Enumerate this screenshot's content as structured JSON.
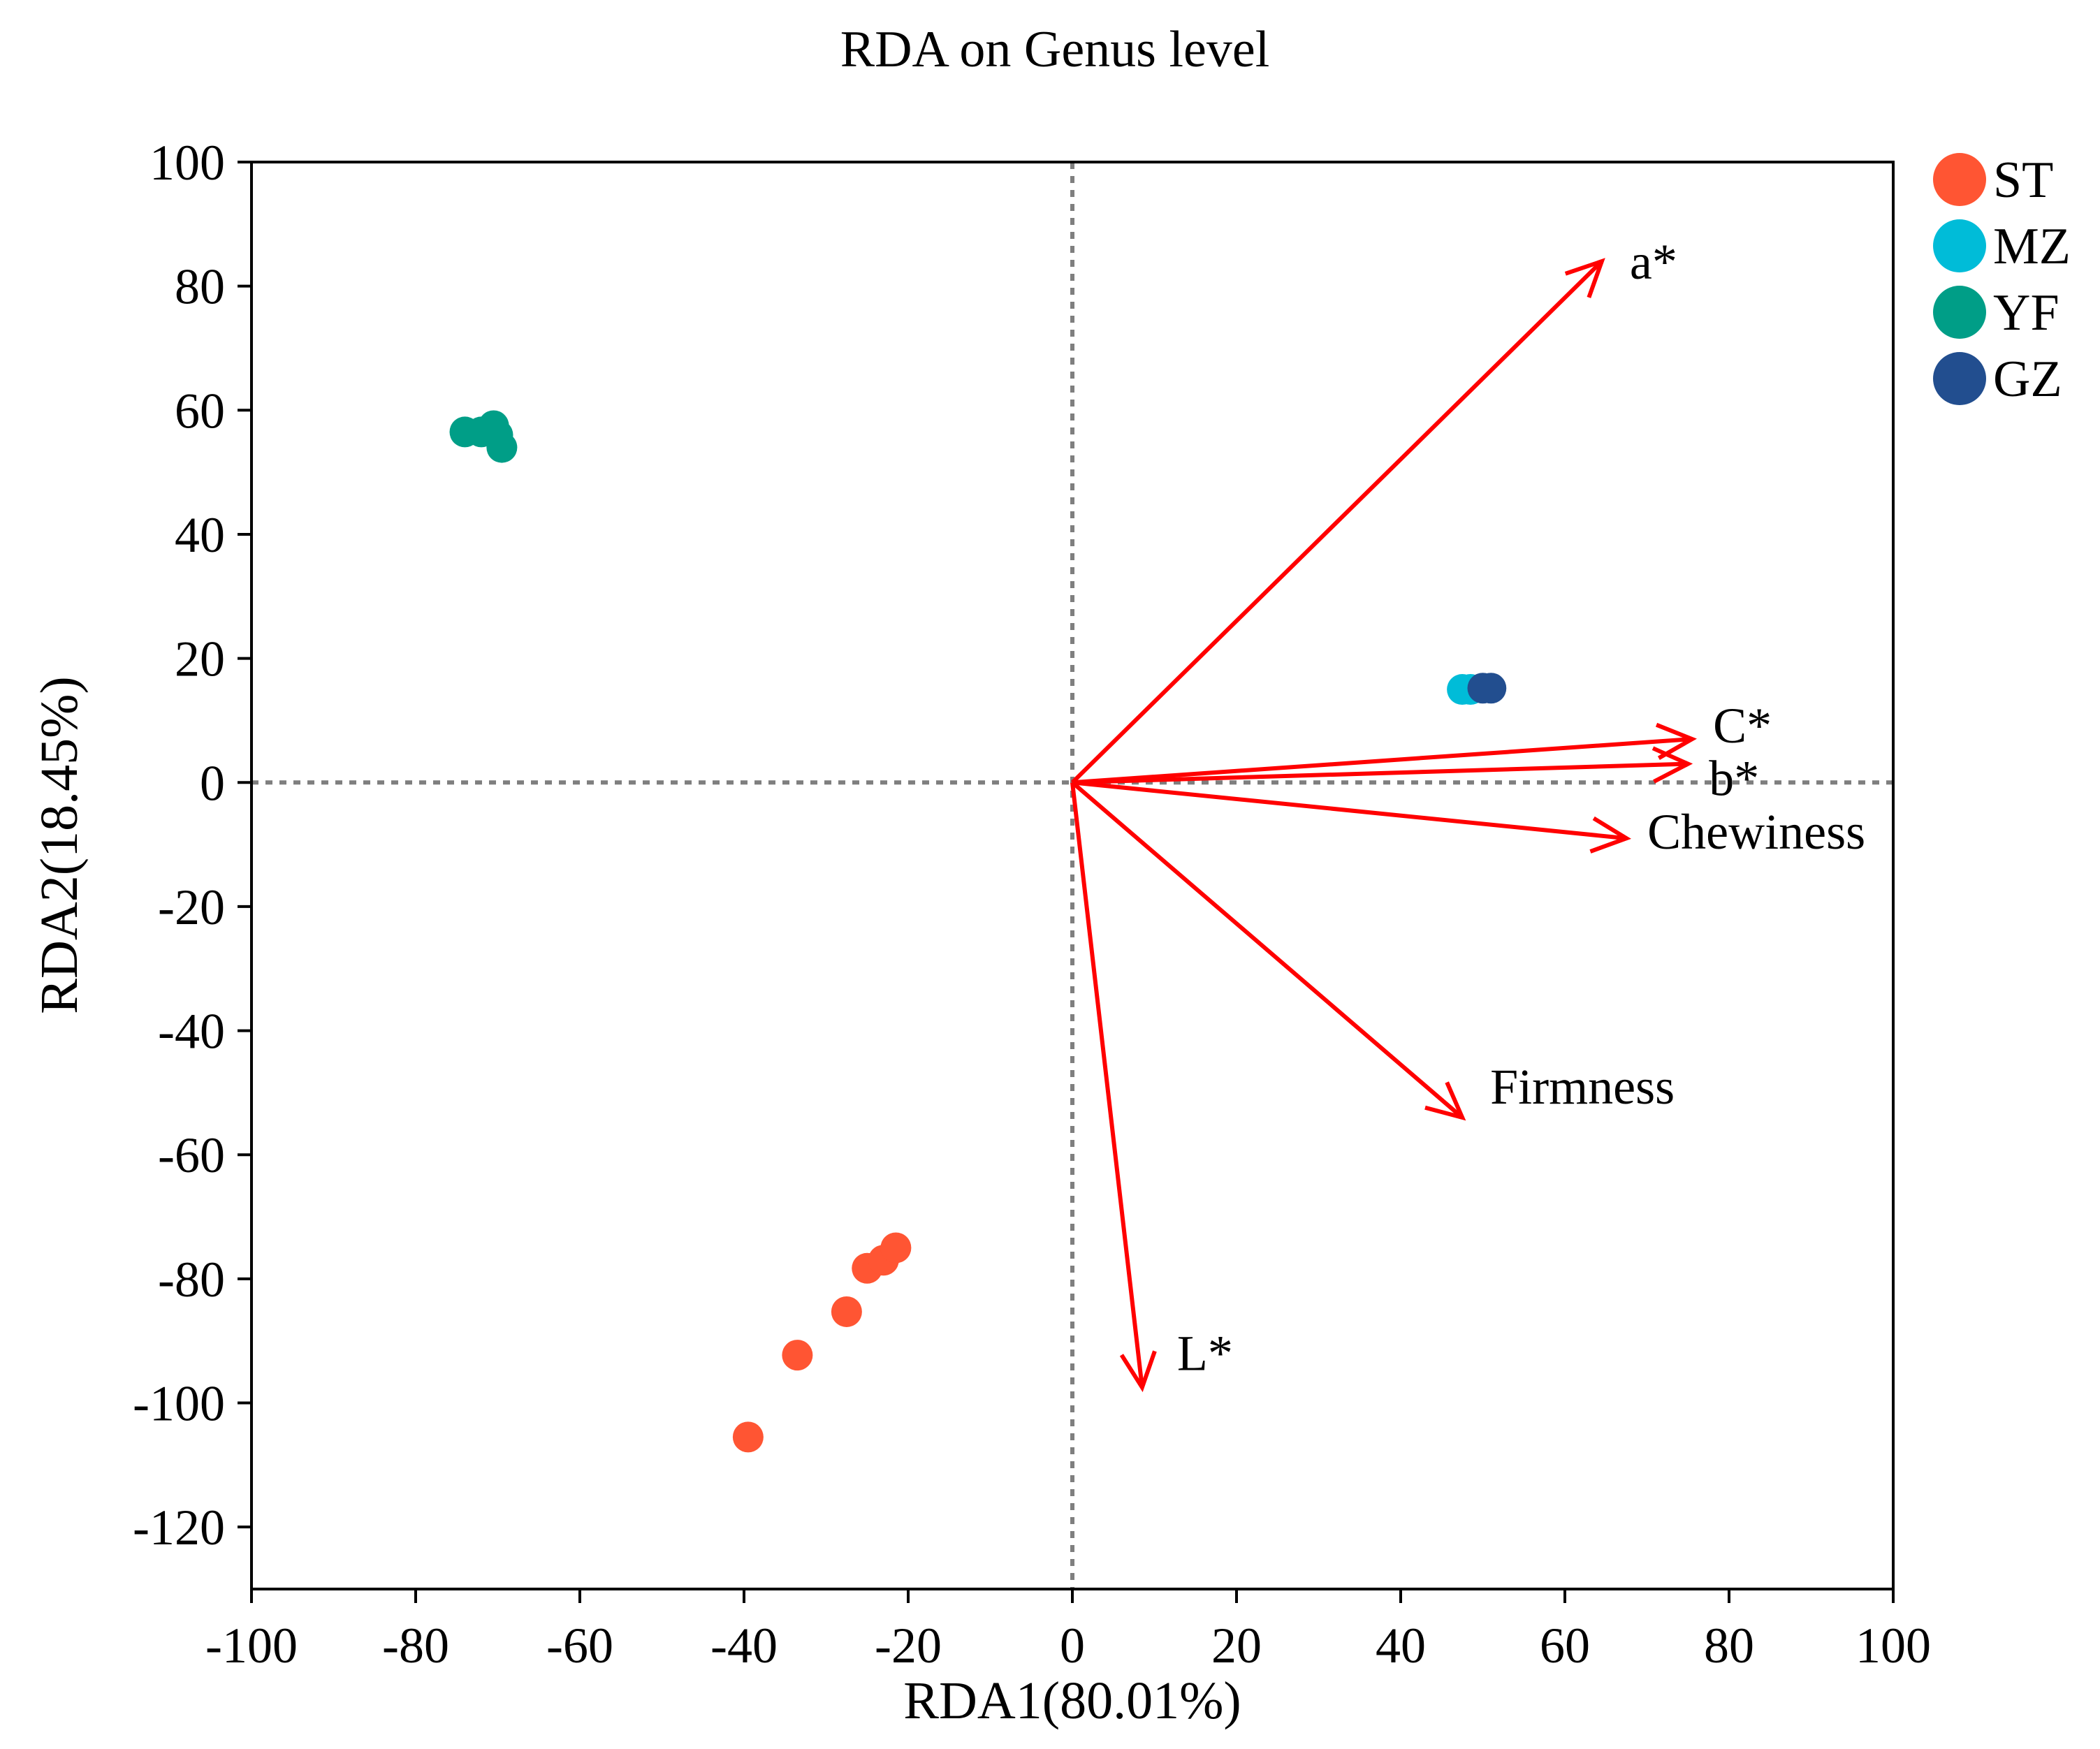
{
  "chart_data": {
    "type": "scatter",
    "title": "RDA on Genus level",
    "xlabel": "RDA1(80.01%)",
    "ylabel": "RDA2(18.45%)",
    "xlim": [
      -100,
      100
    ],
    "ylim": [
      -130,
      100
    ],
    "xticks": [
      -100,
      -80,
      -60,
      -40,
      -20,
      0,
      20,
      40,
      60,
      80,
      100
    ],
    "yticks": [
      100,
      80,
      60,
      40,
      20,
      0,
      -20,
      -40,
      -60,
      -80,
      -100,
      -120
    ],
    "grid": false,
    "zero_lines": true,
    "legend_position": "right-top",
    "series": [
      {
        "name": "ST",
        "color": "#ff5533",
        "points": [
          [
            -39.5,
            -105.5
          ],
          [
            -33.5,
            -92.3
          ],
          [
            -27.5,
            -85.3
          ],
          [
            -25,
            -78.3
          ],
          [
            -23,
            -77
          ],
          [
            -21.5,
            -75
          ]
        ]
      },
      {
        "name": "MZ",
        "color": "#00bcd8",
        "points": [
          [
            47.5,
            15
          ],
          [
            48.5,
            15
          ]
        ]
      },
      {
        "name": "YF",
        "color": "#009e87",
        "points": [
          [
            -74,
            56.5
          ],
          [
            -72,
            56.5
          ],
          [
            -70.5,
            57.5
          ],
          [
            -70,
            56
          ],
          [
            -69.5,
            54
          ]
        ]
      },
      {
        "name": "GZ",
        "color": "#224e8f",
        "points": [
          [
            50,
            15.2
          ],
          [
            51,
            15.2
          ]
        ]
      }
    ],
    "vectors": [
      {
        "name": "a*",
        "x": 64.5,
        "y": 84
      },
      {
        "name": "C*",
        "x": 75.5,
        "y": 7
      },
      {
        "name": "b*",
        "x": 75,
        "y": 3
      },
      {
        "name": "Chewiness",
        "x": 67.5,
        "y": -9
      },
      {
        "name": "Firmness",
        "x": 47.5,
        "y": -54
      },
      {
        "name": "L*",
        "x": 8.5,
        "y": -97.5
      }
    ],
    "vector_color": "#ff0000"
  }
}
